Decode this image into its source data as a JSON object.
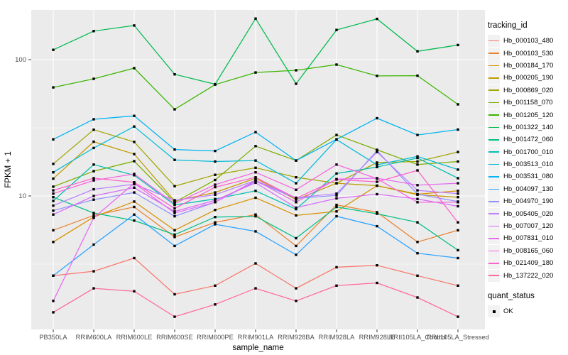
{
  "chart_data": {
    "type": "line",
    "title": "",
    "xlabel": "sample_name",
    "ylabel": "FPKM + 1",
    "y_scale": "log10",
    "ylim": [
      1.05,
      231
    ],
    "grid": true,
    "legend_position": "right",
    "y_ticks": [
      {
        "label": "100",
        "value": 100
      },
      {
        "label": "10",
        "value": 10
      }
    ],
    "y_minor_gridlines": [
      31.62,
      3.162
    ],
    "categories": [
      "PB350LA",
      "RRIM600LA",
      "RRIM600LE",
      "RRIM600SE",
      "RRIM600PE",
      "RRIM901LA",
      "RRIM928BA",
      "RRIM928LA",
      "RRIM928LE",
      "RRII105LA_Control",
      "RRII105LA_Stressed"
    ],
    "series_legend_title": "tracking_id",
    "marker_legend": {
      "title": "quant_status",
      "entries": [
        {
          "label": "OK",
          "marker": "black-square"
        }
      ]
    },
    "series": [
      {
        "name": "Hb_000103_480",
        "color": "#F8766D",
        "values": [
          2.6,
          2.8,
          3.5,
          1.9,
          2.2,
          3.2,
          2.1,
          3.0,
          3.1,
          2.6,
          2.2
        ]
      },
      {
        "name": "Hb_000103_530",
        "color": "#EA8331",
        "values": [
          5.6,
          7.2,
          8.3,
          5.0,
          6.4,
          7.3,
          4.3,
          8.6,
          7.6,
          4.6,
          5.6
        ]
      },
      {
        "name": "Hb_000184_170",
        "color": "#D89000",
        "values": [
          4.6,
          7.0,
          9.1,
          5.6,
          7.9,
          9.7,
          7.2,
          7.7,
          11.9,
          10.3,
          10.9
        ]
      },
      {
        "name": "Hb_000205_190",
        "color": "#C09B00",
        "values": [
          13.4,
          25.0,
          20.3,
          9.2,
          10.6,
          13.5,
          9.4,
          12.4,
          11.9,
          10.2,
          9.8
        ]
      },
      {
        "name": "Hb_000869_020",
        "color": "#A3A500",
        "values": [
          17.2,
          30.6,
          24.9,
          11.8,
          14.3,
          16.1,
          13.7,
          12.4,
          17.6,
          17.9,
          21.0
        ]
      },
      {
        "name": "Hb_001158_070",
        "color": "#7CAE00",
        "values": [
          11.7,
          15.2,
          18.0,
          9.0,
          13.1,
          23.2,
          18.2,
          28.0,
          21.8,
          17.0,
          17.9
        ]
      },
      {
        "name": "Hb_001205_120",
        "color": "#39B600",
        "values": [
          62.6,
          72.3,
          86.6,
          43.2,
          65.6,
          80.5,
          83.5,
          92.0,
          76.0,
          76.3,
          47.0
        ]
      },
      {
        "name": "Hb_001322_140",
        "color": "#00BB4E",
        "values": [
          118,
          162,
          178,
          78,
          66,
          200,
          66.5,
          165,
          199,
          115,
          128
        ]
      },
      {
        "name": "Hb_001472_060",
        "color": "#00C087",
        "values": [
          9.8,
          7.5,
          6.6,
          5.2,
          7.0,
          7.1,
          4.9,
          8.3,
          7.4,
          6.4,
          4.0
        ]
      },
      {
        "name": "Hb_001700_010",
        "color": "#00C0B2",
        "values": [
          9.2,
          17.0,
          14.2,
          8.6,
          9.5,
          10.9,
          8.0,
          14.6,
          16.3,
          19.0,
          13.5
        ]
      },
      {
        "name": "Hb_003513_010",
        "color": "#00BCD8",
        "values": [
          14.9,
          22.5,
          32.3,
          18.4,
          17.9,
          18.2,
          12.4,
          25.9,
          16.9,
          19.5,
          15.6
        ]
      },
      {
        "name": "Hb_003531_080",
        "color": "#00B3F2",
        "values": [
          26.0,
          36.5,
          38.7,
          21.9,
          21.4,
          29.4,
          18.2,
          26.0,
          37.2,
          28.0,
          30.7
        ]
      },
      {
        "name": "Hb_004097_130",
        "color": "#29A3FF",
        "values": [
          2.6,
          4.4,
          7.3,
          4.3,
          6.2,
          5.5,
          3.7,
          7.1,
          6.0,
          3.8,
          3.5
        ]
      },
      {
        "name": "Hb_004970_190",
        "color": "#9590FF",
        "values": [
          7.8,
          9.4,
          10.6,
          7.1,
          9.0,
          12.8,
          9.6,
          10.1,
          21.5,
          10.3,
          9.1
        ]
      },
      {
        "name": "Hb_005405_020",
        "color": "#BC80FF",
        "values": [
          8.5,
          11.2,
          12.2,
          9.3,
          10.2,
          13.0,
          9.7,
          10.4,
          21.0,
          11.0,
          10.4
        ]
      },
      {
        "name": "Hb_007007_120",
        "color": "#D66BFA",
        "values": [
          7.3,
          10.0,
          11.5,
          7.7,
          9.3,
          12.5,
          8.2,
          9.6,
          10.3,
          9.5,
          8.4
        ]
      },
      {
        "name": "Hb_007831_010",
        "color": "#E76BF3",
        "values": [
          1.7,
          6.9,
          12.4,
          7.5,
          9.0,
          13.0,
          9.0,
          13.3,
          13.5,
          12.0,
          12.4
        ]
      },
      {
        "name": "Hb_008165_060",
        "color": "#F763E0",
        "values": [
          10.4,
          13.0,
          14.5,
          8.8,
          12.1,
          14.9,
          11.1,
          17.0,
          13.4,
          9.0,
          9.0
        ]
      },
      {
        "name": "Hb_021409_180",
        "color": "#FF61CC",
        "values": [
          11.0,
          13.5,
          12.6,
          8.1,
          11.6,
          13.7,
          9.6,
          13.2,
          12.7,
          15.4,
          6.4
        ]
      },
      {
        "name": "Hb_137222_020",
        "color": "#FF689E",
        "values": [
          1.4,
          2.1,
          2.0,
          1.3,
          1.6,
          2.1,
          1.7,
          2.2,
          2.3,
          1.8,
          1.3
        ]
      }
    ]
  },
  "colors": {
    "panel_background": "#EBEBEB",
    "gridline": "#FFFFFF",
    "tick_label": "#4D4D4D",
    "axis_title": "#000000",
    "marker": "#000000",
    "legend_key_background": "#F2F2F2"
  }
}
